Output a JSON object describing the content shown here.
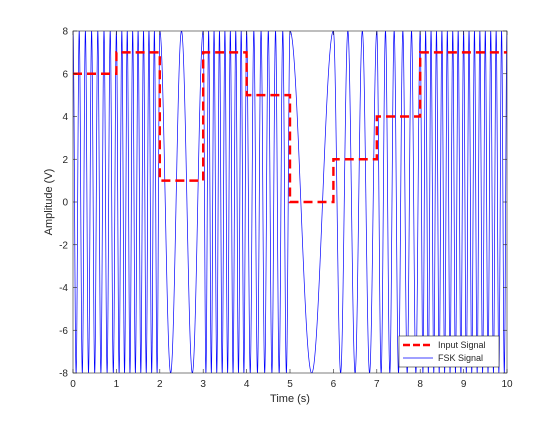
{
  "chart_data": {
    "type": "line",
    "title": "",
    "xlabel": "Time (s)",
    "ylabel": "Amplitude (V)",
    "xlim": [
      0,
      10
    ],
    "ylim": [
      -8,
      8
    ],
    "xticks": [
      "0",
      "1",
      "2",
      "3",
      "4",
      "5",
      "6",
      "7",
      "8",
      "9",
      "10"
    ],
    "yticks": [
      "-8",
      "-6",
      "-4",
      "-2",
      "0",
      "2",
      "4",
      "6",
      "8"
    ],
    "grid": false,
    "legend_location": "bottom-right",
    "series": [
      {
        "name": "Input Signal",
        "style": "dashed",
        "color": "#ff0000",
        "x": [
          0,
          0.5,
          1,
          1.5,
          2,
          2.5,
          3,
          3.5,
          4,
          4.5,
          5,
          5.5,
          6,
          6.5,
          7,
          7.5,
          8,
          8.5,
          9,
          9.5
        ],
        "y": [
          6,
          6,
          7,
          7,
          1,
          1,
          7,
          7,
          5,
          5,
          0,
          0,
          2,
          2,
          4,
          4,
          7,
          7,
          7,
          7
        ],
        "symbol_duration": 1
      },
      {
        "name": "FSK Signal",
        "style": "solid",
        "color": "#0000ff",
        "amplitude": 8,
        "base_frequency_hz": 1,
        "frequency_step_hz": 1,
        "samples_per_second": 400
      }
    ]
  }
}
